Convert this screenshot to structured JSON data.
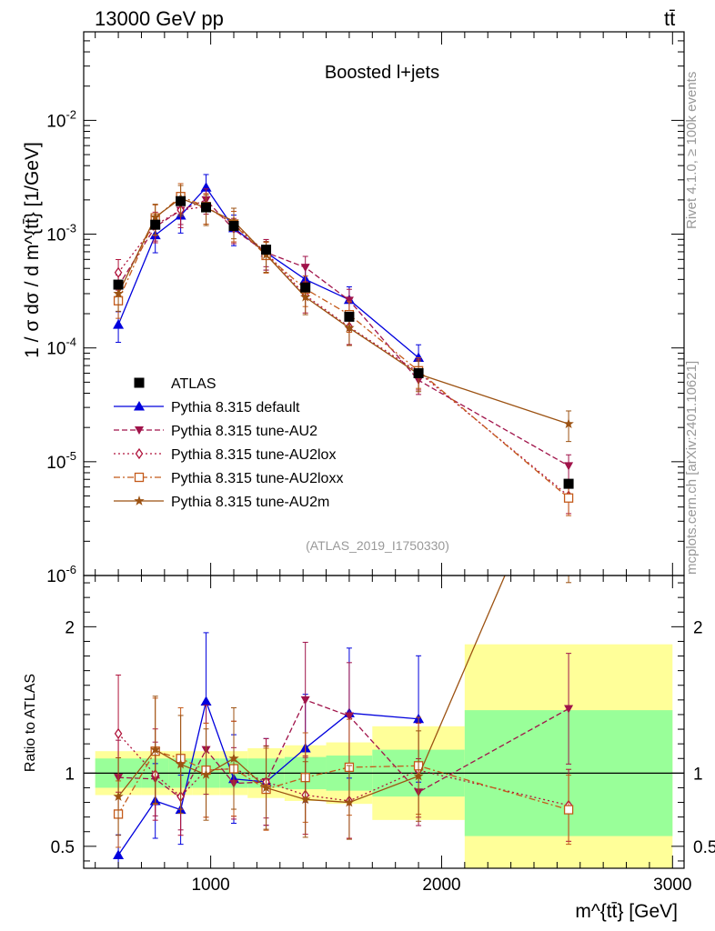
{
  "header": {
    "left": "13000 GeV pp",
    "right": "tt̄"
  },
  "side_text": {
    "rivet": "Rivet 4.1.0, ≥ 100k events",
    "mcplots": "mcplots.cern.ch [arXiv:2401.10621]"
  },
  "chart_data": [
    {
      "type": "line",
      "title": "Boosted l+jets",
      "analysis_tag": "(ATLAS_2019_I1750330)",
      "ylabel": "1 / σ dσ / d m^{tt̄} [1/GeV]",
      "yscale": "log",
      "xlim": [
        450,
        3050
      ],
      "ylim": [
        1e-06,
        0.06
      ],
      "x_ticks": [
        1000,
        2000,
        3000
      ],
      "y_tick_labels": [
        {
          "value": 0.01,
          "base": "10",
          "exp": "-2"
        },
        {
          "value": 0.001,
          "base": "10",
          "exp": "-3"
        },
        {
          "value": 0.0001,
          "base": "10",
          "exp": "-4"
        },
        {
          "value": 1e-05,
          "base": "10",
          "exp": "-5"
        },
        {
          "value": 1e-06,
          "base": "10",
          "exp": "-6"
        }
      ],
      "bins": [
        [
          500,
          700
        ],
        [
          700,
          820
        ],
        [
          820,
          920
        ],
        [
          920,
          1040
        ],
        [
          1040,
          1160
        ],
        [
          1160,
          1320
        ],
        [
          1320,
          1500
        ],
        [
          1500,
          1700
        ],
        [
          1700,
          2100
        ],
        [
          2100,
          3000
        ]
      ],
      "x": [
        600,
        760,
        870,
        980,
        1100,
        1240,
        1410,
        1600,
        1900,
        2550
      ],
      "data": {
        "name": "ATLAS",
        "values": [
          0.00036,
          0.00121,
          0.00195,
          0.00172,
          0.00118,
          0.00073,
          0.00034,
          0.000188,
          6e-05,
          6.4e-06
        ]
      },
      "series": [
        {
          "name": "Pythia 8.315 default",
          "values": [
            0.00016,
            0.00098,
            0.00146,
            0.00257,
            0.00113,
            0.00069,
            0.0004,
            0.000265,
            8.2e-05,
            null
          ],
          "err_frac": 0.3
        },
        {
          "name": "Pythia 8.315 tune-AU2",
          "values": [
            0.00035,
            0.00116,
            0.00162,
            0.002,
            0.0011,
            0.00069,
            0.00051,
            0.000262,
            5.2e-05,
            9.2e-06
          ],
          "err_frac": 0.25
        },
        {
          "name": "Pythia 8.315 tune-AU2lox",
          "values": [
            0.00046,
            0.0012,
            0.00163,
            0.00175,
            0.00122,
            0.00069,
            0.00029,
            0.000153,
            6.1e-05,
            5e-06
          ],
          "err_frac": 0.3
        },
        {
          "name": "Pythia 8.315 tune-AU2loxx",
          "values": [
            0.00026,
            0.00139,
            0.00214,
            0.00175,
            0.00122,
            0.00065,
            0.00033,
            0.000196,
            6.3e-05,
            4.8e-06
          ],
          "err_frac": 0.3
        },
        {
          "name": "Pythia 8.315 tune-AU2m",
          "values": [
            0.0003,
            0.00141,
            0.00206,
            0.0017,
            0.0013,
            0.00066,
            0.00028,
            0.00015,
            5.9e-05,
            2.15e-05
          ],
          "err_frac": 0.3
        }
      ]
    },
    {
      "type": "line",
      "ylabel": "Ratio to ATLAS",
      "xlabel": "m^{tt̄} [GeV]",
      "ylim": [
        0.35,
        2.35
      ],
      "y_ticks": [
        0.5,
        1,
        2
      ],
      "band_inner": [
        0.1,
        0.1,
        0.1,
        0.1,
        0.1,
        0.1,
        0.11,
        0.12,
        0.16,
        0.43
      ],
      "band_outer": [
        0.15,
        0.15,
        0.15,
        0.15,
        0.15,
        0.17,
        0.19,
        0.21,
        0.32,
        0.88
      ],
      "ratios": [
        {
          "name": "Pythia 8.315 default",
          "values": [
            0.44,
            0.81,
            0.75,
            1.49,
            0.96,
            0.94,
            1.17,
            1.41,
            1.37,
            null
          ]
        },
        {
          "name": "Pythia 8.315 tune-AU2",
          "values": [
            0.97,
            0.96,
            0.83,
            1.16,
            0.93,
            0.94,
            1.5,
            1.39,
            0.87,
            1.44
          ]
        },
        {
          "name": "Pythia 8.315 tune-AU2lox",
          "values": [
            1.27,
            0.99,
            0.84,
            1.02,
            1.03,
            0.94,
            0.85,
            0.81,
            1.02,
            0.78
          ]
        },
        {
          "name": "Pythia 8.315 tune-AU2loxx",
          "values": [
            0.72,
            1.15,
            1.1,
            1.02,
            1.03,
            0.89,
            0.97,
            1.04,
            1.05,
            0.75
          ]
        },
        {
          "name": "Pythia 8.315 tune-AU2m",
          "values": [
            0.84,
            1.16,
            1.06,
            0.99,
            1.1,
            0.9,
            0.82,
            0.8,
            0.98,
            3.36
          ]
        }
      ]
    }
  ],
  "legend": [
    {
      "label": "ATLAS",
      "color": "#000000",
      "marker": "square"
    },
    {
      "label": "Pythia 8.315 default",
      "color": "#0000dd",
      "marker": "triangle-up"
    },
    {
      "label": "Pythia 8.315 tune-AU2",
      "color": "#a0134a",
      "marker": "triangle-down"
    },
    {
      "label": "Pythia 8.315 tune-AU2lox",
      "color": "#b0143c",
      "marker": "diamond-open"
    },
    {
      "label": "Pythia 8.315 tune-AU2loxx",
      "color": "#c45a1a",
      "marker": "square-open"
    },
    {
      "label": "Pythia 8.315 tune-AU2m",
      "color": "#9c5212",
      "marker": "star"
    }
  ],
  "colors": {
    "band_inner": "#99ff99",
    "band_outer": "#ffff99"
  }
}
